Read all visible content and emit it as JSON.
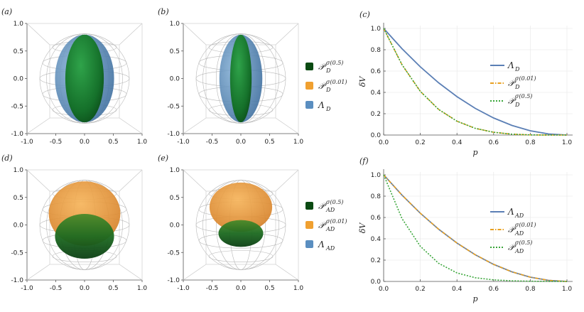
{
  "panel_labels": [
    "(a)",
    "(b)",
    "(c)",
    "(d)",
    "(e)",
    "(f)"
  ],
  "sphere_ticks": [
    "-1.0",
    "-0.5",
    "0.0",
    "0.5",
    "1.0"
  ],
  "colors": {
    "green": "#1a7a1a",
    "dark_green": "#0a4a12",
    "orange": "#f0a030",
    "blue": "#5a8ec0",
    "curve_blue": "#5b7fb5",
    "curve_orange": "#e8a020",
    "curve_green": "#3aa63a",
    "curve_olive": "#8a9a30",
    "curve_brown": "#9a8a72"
  },
  "legend_top": [
    {
      "base": "𝒫",
      "sub": "D",
      "sup": "σ(0.5)",
      "color": "#0a4a12"
    },
    {
      "base": "𝒫",
      "sub": "D",
      "sup": "σ(0.01)",
      "color": "#f0a030"
    },
    {
      "base": "Λ",
      "sub": "D",
      "sup": "",
      "color": "#5a8ec0"
    }
  ],
  "legend_bottom": [
    {
      "base": "𝒫",
      "sub": "AD",
      "sup": "σ(0.5)",
      "color": "#0a4a12"
    },
    {
      "base": "𝒫",
      "sub": "AD",
      "sup": "σ(0.01)",
      "color": "#f0a030"
    },
    {
      "base": "Λ",
      "sub": "AD",
      "sup": "",
      "color": "#5a8ec0"
    }
  ],
  "chart_data": [
    {
      "panel": "(c)",
      "type": "line",
      "xlabel": "p",
      "ylabel": "δV",
      "xlim": [
        0,
        1
      ],
      "ylim": [
        0,
        1
      ],
      "xticks": [
        "0.0",
        "0.2",
        "0.4",
        "0.6",
        "0.8",
        "1.0"
      ],
      "yticks": [
        "0.0",
        "0.2",
        "0.4",
        "0.6",
        "0.8",
        "1.0"
      ],
      "x": [
        0.0,
        0.1,
        0.2,
        0.3,
        0.4,
        0.5,
        0.6,
        0.7,
        0.8,
        0.9,
        1.0
      ],
      "series": [
        {
          "name": "Λ_D",
          "base": "Λ",
          "sub": "D",
          "sup": "",
          "style": "solid",
          "color": "#5b7fb5",
          "values": [
            1.0,
            0.81,
            0.64,
            0.49,
            0.36,
            0.25,
            0.16,
            0.09,
            0.04,
            0.01,
            0.0
          ]
        },
        {
          "name": "P_D^σ(0.01)",
          "base": "𝒫",
          "sub": "D",
          "sup": "σ(0.01)",
          "style": "dashdot",
          "color": "#e8a020",
          "values": [
            1.0,
            0.66,
            0.41,
            0.24,
            0.13,
            0.0625,
            0.026,
            0.0081,
            0.0016,
            0.0001,
            0.0
          ]
        },
        {
          "name": "P_D^σ(0.5)",
          "base": "𝒫",
          "sub": "D",
          "sup": "σ(0.5)",
          "style": "dotted",
          "color": "#3aa63a",
          "values": [
            1.0,
            0.66,
            0.41,
            0.24,
            0.13,
            0.0625,
            0.026,
            0.0081,
            0.0016,
            0.0001,
            0.0
          ]
        }
      ],
      "legend": "right"
    },
    {
      "panel": "(f)",
      "type": "line",
      "xlabel": "p",
      "ylabel": "δV",
      "xlim": [
        0,
        1
      ],
      "ylim": [
        0,
        1
      ],
      "xticks": [
        "0.0",
        "0.2",
        "0.4",
        "0.6",
        "0.8",
        "1.0"
      ],
      "yticks": [
        "0.0",
        "0.2",
        "0.4",
        "0.6",
        "0.8",
        "1.0"
      ],
      "x": [
        0.0,
        0.1,
        0.2,
        0.3,
        0.4,
        0.5,
        0.6,
        0.7,
        0.8,
        0.9,
        1.0
      ],
      "series": [
        {
          "name": "Λ_AD",
          "base": "Λ",
          "sub": "AD",
          "sup": "",
          "style": "solid",
          "color": "#5b7fb5",
          "values": [
            1.0,
            0.81,
            0.64,
            0.49,
            0.36,
            0.25,
            0.16,
            0.09,
            0.04,
            0.01,
            0.0
          ]
        },
        {
          "name": "P_AD^σ(0.01)",
          "base": "𝒫",
          "sub": "AD",
          "sup": "σ(0.01)",
          "style": "dashdot",
          "color": "#e8a020",
          "values": [
            1.0,
            0.81,
            0.64,
            0.49,
            0.36,
            0.25,
            0.16,
            0.09,
            0.04,
            0.01,
            0.0
          ]
        },
        {
          "name": "P_AD^σ(0.5)",
          "base": "𝒫",
          "sub": "AD",
          "sup": "σ(0.5)",
          "style": "dotted",
          "color": "#3aa63a",
          "values": [
            1.0,
            0.59,
            0.33,
            0.17,
            0.08,
            0.035,
            0.015,
            0.006,
            0.002,
            0.0005,
            0.0
          ]
        }
      ],
      "legend": "right"
    }
  ]
}
